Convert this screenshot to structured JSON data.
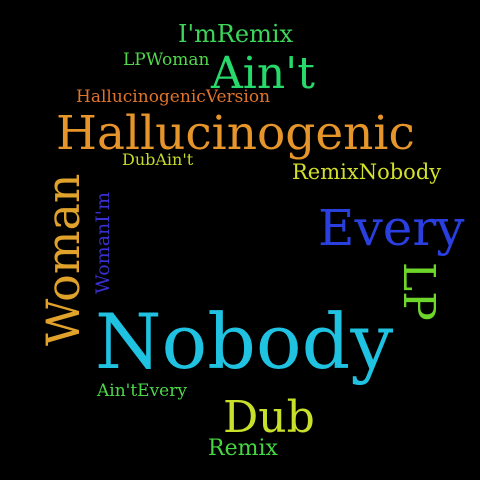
{
  "words": [
    {
      "text": "I'mRemix",
      "color": "#3dd65a"
    },
    {
      "text": "LPWoman",
      "color": "#4fd94a"
    },
    {
      "text": "Ain't",
      "color": "#26d96a"
    },
    {
      "text": "HallucinogenicVersion",
      "color": "#e0742a"
    },
    {
      "text": "Hallucinogenic",
      "color": "#e6952a"
    },
    {
      "text": "DubAin't",
      "color": "#c6d92a"
    },
    {
      "text": "RemixNobody",
      "color": "#d3e02a"
    },
    {
      "text": "Woman",
      "color": "#e0a22a"
    },
    {
      "text": "WomanI'm",
      "color": "#3a2fd0"
    },
    {
      "text": "Every",
      "color": "#2a3fe0"
    },
    {
      "text": "LP",
      "color": "#6ed62a"
    },
    {
      "text": "Nobody",
      "color": "#1fc2e0"
    },
    {
      "text": "Ain'tEvery",
      "color": "#4dd84a"
    },
    {
      "text": "Dub",
      "color": "#c9e02a"
    },
    {
      "text": "Remix",
      "color": "#46d640"
    }
  ]
}
